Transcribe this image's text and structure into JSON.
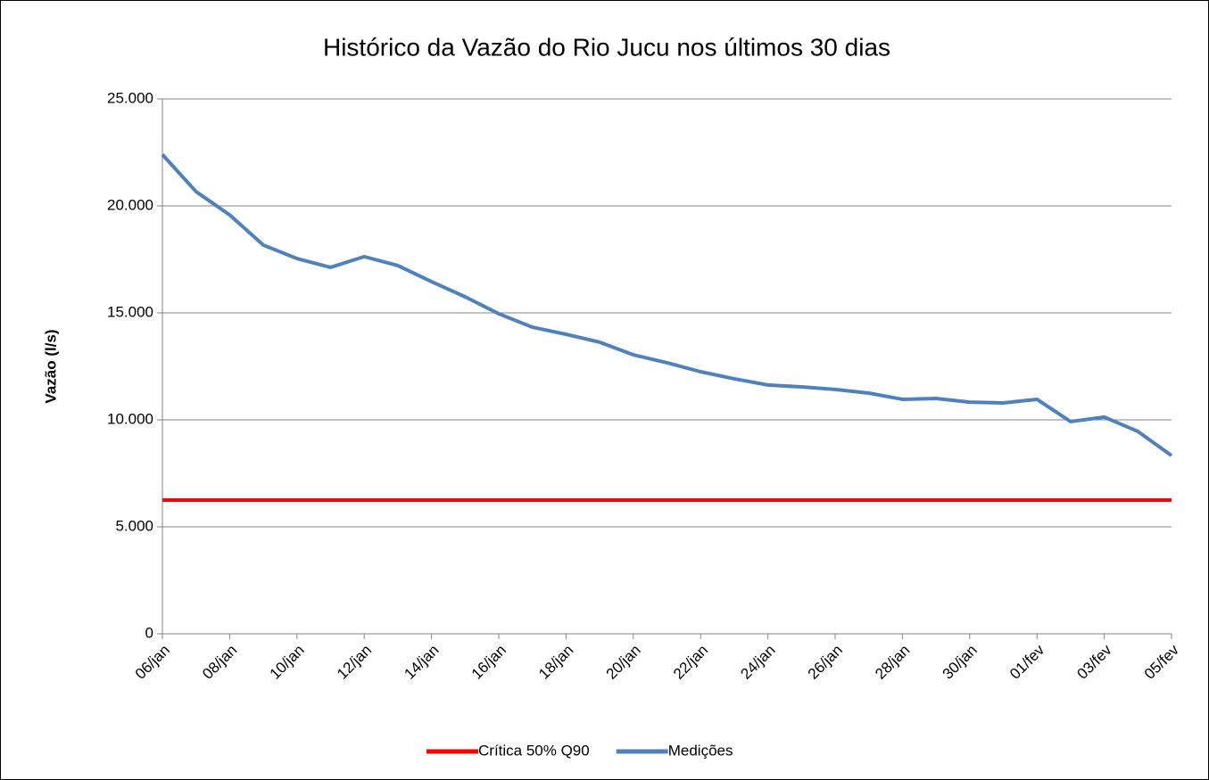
{
  "chart_data": {
    "type": "line",
    "title": "Histórico da Vazão do Rio Jucu nos últimos 30 dias",
    "y_label": "Vazão (l/s)",
    "categories": [
      "06/jan",
      null,
      "08/jan",
      null,
      "10/jan",
      null,
      "12/jan",
      null,
      "14/jan",
      null,
      "16/jan",
      null,
      "18/jan",
      null,
      "20/jan",
      null,
      "22/jan",
      null,
      "24/jan",
      null,
      "26/jan",
      null,
      "28/jan",
      null,
      "30/jan",
      null,
      "01/fev",
      null,
      "03/fev",
      null,
      "05/fev"
    ],
    "series": [
      {
        "name": "Crítica 50% Q90",
        "color": "#ff0000",
        "values": [
          6250,
          6250,
          6250,
          6250,
          6250,
          6250,
          6250,
          6250,
          6250,
          6250,
          6250,
          6250,
          6250,
          6250,
          6250,
          6250,
          6250,
          6250,
          6250,
          6250,
          6250,
          6250,
          6250,
          6250,
          6250,
          6250,
          6250,
          6250,
          6250,
          6250,
          6250
        ]
      },
      {
        "name": "Medições",
        "color": "#4f81bd",
        "values": [
          22400,
          20670,
          19580,
          18170,
          17540,
          17130,
          17630,
          17210,
          16460,
          15750,
          14960,
          14330,
          14000,
          13630,
          13040,
          12670,
          12250,
          11920,
          11630,
          11540,
          11420,
          11250,
          10960,
          11000,
          10830,
          10790,
          10960,
          9920,
          10130,
          9460,
          8330
        ]
      }
    ],
    "ylim": [
      0,
      25000
    ],
    "yticks": [
      0,
      {
        "value": 5000,
        "label": "5.000"
      },
      {
        "value": 10000,
        "label": "10.000"
      },
      {
        "value": 15000,
        "label": "15.000"
      },
      {
        "value": 20000,
        "label": "20.000"
      },
      {
        "value": 25000,
        "label": "25.000"
      }
    ],
    "grid": true,
    "legend": "bottom"
  }
}
